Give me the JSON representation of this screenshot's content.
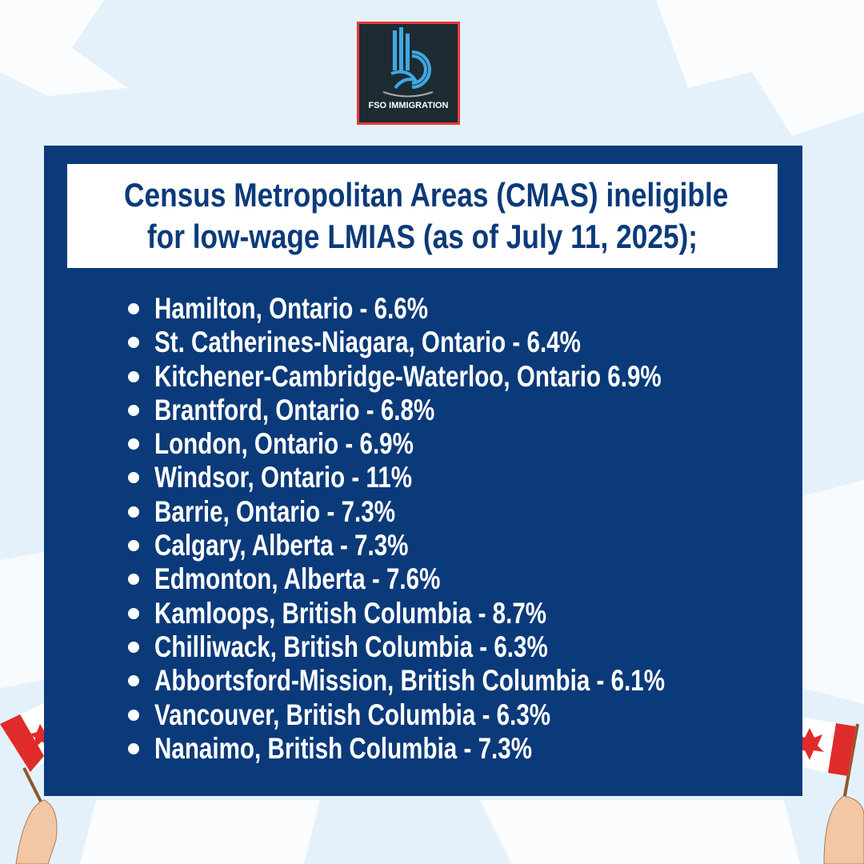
{
  "logo": {
    "text": "FSO IMMIGRATION"
  },
  "title": {
    "line1": "Census Metropolitan Areas (CMAS) ineligible",
    "line2": "for low-wage LMIAS (as of July 11, 2025);"
  },
  "items": [
    "Hamilton, Ontario - 6.6%",
    "St. Catherines-Niagara, Ontario - 6.4%",
    "Kitchener-Cambridge-Waterloo, Ontario 6.9%",
    "Brantford, Ontario - 6.8%",
    "London, Ontario - 6.9%",
    "Windsor, Ontario - 11%",
    "Barrie, Ontario - 7.3%",
    "Calgary, Alberta - 7.3%",
    "Edmonton, Alberta - 7.6%",
    "Kamloops, British Columbia - 8.7%",
    "Chilliwack, British Columbia - 6.3%",
    "Abbortsford-Mission, British Columbia - 6.1%",
    "Vancouver, British Columbia - 6.3%",
    "Nanaimo, British Columbia - 7.3%"
  ]
}
